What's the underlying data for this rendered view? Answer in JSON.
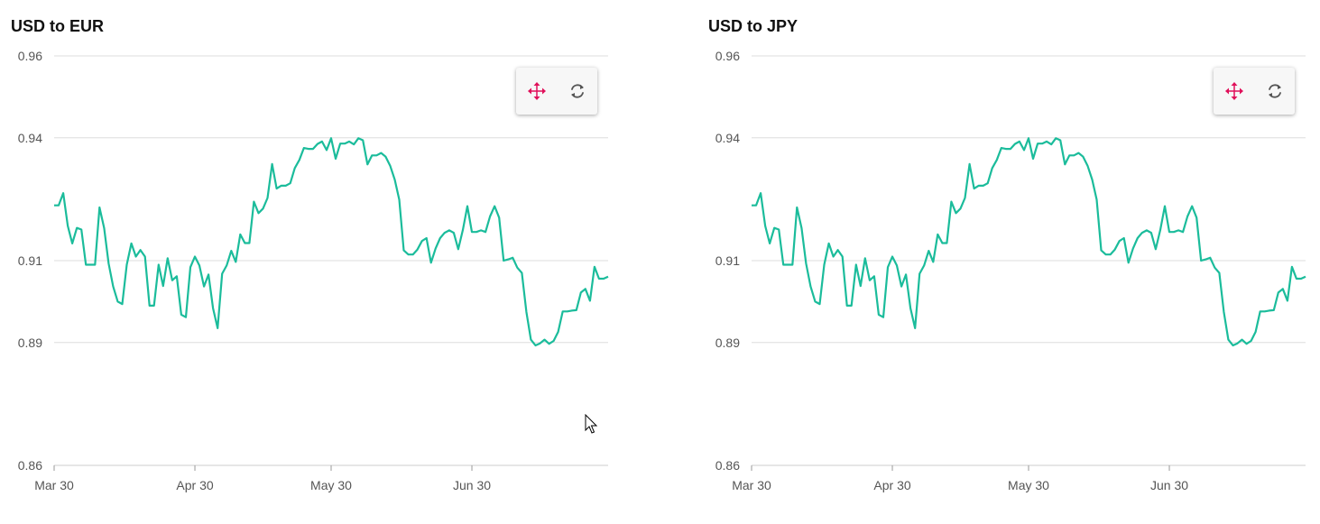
{
  "charts": [
    {
      "title": "USD to EUR",
      "toolbar": {
        "pan_icon": "pan-move-icon",
        "reset_icon": "reset-refresh-icon"
      }
    },
    {
      "title": "USD to JPY",
      "toolbar": {
        "pan_icon": "pan-move-icon",
        "reset_icon": "reset-refresh-icon"
      }
    }
  ],
  "colors": {
    "line": "#1bbc9b",
    "grid": "#dddddd",
    "pan_icon": "#e0105a",
    "reset_icon": "#555555"
  },
  "chart_data": [
    {
      "type": "line",
      "title": "USD to EUR",
      "xlabel": "",
      "ylabel": "",
      "ylim": [
        0.86,
        0.96
      ],
      "y_ticks": [
        0.96,
        0.94,
        0.91,
        0.89,
        0.86
      ],
      "x_ticks": [
        "Mar 30",
        "Apr 30",
        "May 30",
        "Jun 30"
      ],
      "x_range_days": [
        0,
        122
      ],
      "x_tick_days": [
        0,
        31,
        61,
        92
      ],
      "grid": true,
      "series": [
        {
          "values": [
            0.9235,
            0.9235,
            0.9265,
            0.9185,
            0.9142,
            0.918,
            0.9176,
            0.909,
            0.909,
            0.909,
            0.923,
            0.918,
            0.9093,
            0.9037,
            0.9,
            0.8994,
            0.909,
            0.9142,
            0.911,
            0.9126,
            0.911,
            0.899,
            0.899,
            0.909,
            0.9038,
            0.9106,
            0.9052,
            0.9062,
            0.8968,
            0.8962,
            0.9084,
            0.911,
            0.9088,
            0.9037,
            0.9066,
            0.8984,
            0.8935,
            0.9068,
            0.9088,
            0.9124,
            0.9097,
            0.9164,
            0.9143,
            0.9143,
            0.9244,
            0.9216,
            0.9227,
            0.9253,
            0.9336,
            0.9276,
            0.9283,
            0.9283,
            0.9289,
            0.9326,
            0.9346,
            0.9375,
            0.9373,
            0.9373,
            0.9385,
            0.9391,
            0.937,
            0.9399,
            0.9349,
            0.9386,
            0.9386,
            0.9391,
            0.9384,
            0.9399,
            0.9394,
            0.9335,
            0.9357,
            0.9357,
            0.9363,
            0.9354,
            0.9332,
            0.9298,
            0.9249,
            0.9125,
            0.9115,
            0.9115,
            0.9127,
            0.9148,
            0.9155,
            0.9095,
            0.913,
            0.9155,
            0.9168,
            0.9174,
            0.9168,
            0.9128,
            0.9175,
            0.9233,
            0.917,
            0.917,
            0.9174,
            0.917,
            0.9208,
            0.9233,
            0.9205,
            0.91,
            0.9103,
            0.9107,
            0.9083,
            0.907,
            0.8975,
            0.8907,
            0.8893,
            0.8898,
            0.8907,
            0.8897,
            0.8904,
            0.8926,
            0.8976,
            0.8976,
            0.8978,
            0.8979,
            0.9022,
            0.9031,
            0.9002,
            0.9085,
            0.9056,
            0.9056,
            0.9061
          ]
        }
      ]
    },
    {
      "type": "line",
      "title": "USD to JPY",
      "xlabel": "",
      "ylabel": "",
      "ylim": [
        0.86,
        0.96
      ],
      "y_ticks": [
        0.96,
        0.94,
        0.91,
        0.89,
        0.86
      ],
      "x_ticks": [
        "Mar 30",
        "Apr 30",
        "May 30",
        "Jun 30"
      ],
      "x_range_days": [
        0,
        122
      ],
      "x_tick_days": [
        0,
        31,
        61,
        92
      ],
      "grid": true,
      "series": [
        {
          "values": [
            0.9235,
            0.9235,
            0.9265,
            0.9185,
            0.9142,
            0.918,
            0.9176,
            0.909,
            0.909,
            0.909,
            0.923,
            0.918,
            0.9093,
            0.9037,
            0.9,
            0.8994,
            0.909,
            0.9142,
            0.911,
            0.9126,
            0.911,
            0.899,
            0.899,
            0.909,
            0.9038,
            0.9106,
            0.9052,
            0.9062,
            0.8968,
            0.8962,
            0.9084,
            0.911,
            0.9088,
            0.9037,
            0.9066,
            0.8984,
            0.8935,
            0.9068,
            0.9088,
            0.9124,
            0.9097,
            0.9164,
            0.9143,
            0.9143,
            0.9244,
            0.9216,
            0.9227,
            0.9253,
            0.9336,
            0.9276,
            0.9283,
            0.9283,
            0.9289,
            0.9326,
            0.9346,
            0.9375,
            0.9373,
            0.9373,
            0.9385,
            0.9391,
            0.937,
            0.9399,
            0.9349,
            0.9386,
            0.9386,
            0.9391,
            0.9384,
            0.9399,
            0.9394,
            0.9335,
            0.9357,
            0.9357,
            0.9363,
            0.9354,
            0.9332,
            0.9298,
            0.9249,
            0.9125,
            0.9115,
            0.9115,
            0.9127,
            0.9148,
            0.9155,
            0.9095,
            0.913,
            0.9155,
            0.9168,
            0.9174,
            0.9168,
            0.9128,
            0.9175,
            0.9233,
            0.917,
            0.917,
            0.9174,
            0.917,
            0.9208,
            0.9233,
            0.9205,
            0.91,
            0.9103,
            0.9107,
            0.9083,
            0.907,
            0.8975,
            0.8907,
            0.8893,
            0.8898,
            0.8907,
            0.8897,
            0.8904,
            0.8926,
            0.8976,
            0.8976,
            0.8978,
            0.8979,
            0.9022,
            0.9031,
            0.9002,
            0.9085,
            0.9056,
            0.9056,
            0.9061
          ]
        }
      ]
    }
  ]
}
